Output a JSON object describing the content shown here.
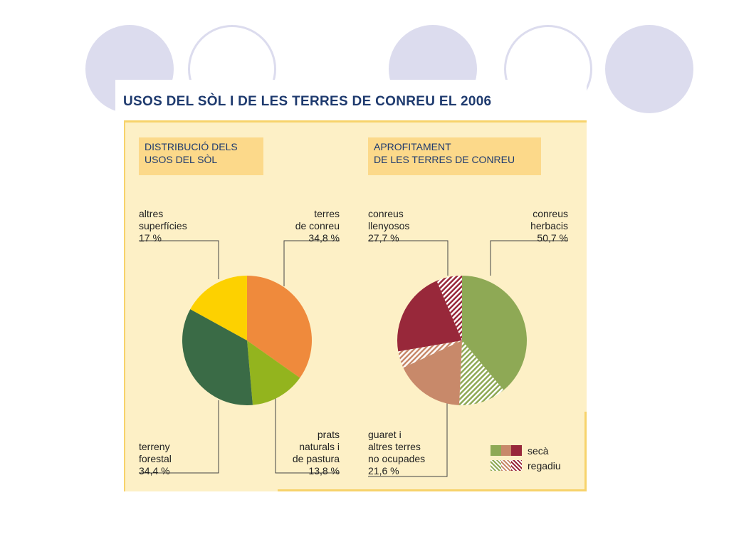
{
  "title": "USOS DEL SÒL I DE LES TERRES DE CONREU EL 2006",
  "left_heading": [
    "DISTRIBUCIÓ DELS",
    "USOS DEL SÒL"
  ],
  "right_heading": [
    "APROFITAMENT",
    "DE LES TERRES DE CONREU"
  ],
  "colors": {
    "title": "#1e3a6e",
    "background_panel": "#fdf0c6",
    "heading_box": "#fcd98a",
    "decor_circles": "#dcdcee",
    "terres_de_conreu": "#ef8a3c",
    "prats": "#93b41e",
    "terreny_forestal": "#3a6b46",
    "altres_superficies": "#fdd100",
    "herbacis": "#8ea955",
    "guaret": "#c8896a",
    "llenyosos": "#98283a",
    "regadiu_hatch": "#c6283b"
  },
  "left_labels": {
    "altres": {
      "text": "altres\nsuperfícies",
      "value": "17 %"
    },
    "terres": {
      "text": "terres\nde conreu",
      "value": "34,8 %"
    },
    "forestal": {
      "text": "terreny\nforestal",
      "value": "34,4 %"
    },
    "prats": {
      "text": "prats\nnaturals i\nde pastura",
      "value": "13,8 %"
    }
  },
  "right_labels": {
    "llenyosos": {
      "text": "conreus\nllenyosos",
      "value": "27,7 %"
    },
    "herbacis": {
      "text": "conreus\nherbacis",
      "value": "50,7 %"
    },
    "guaret": {
      "text": "guaret i\naltres terres\nno ocupades",
      "value": "21,6 %"
    }
  },
  "legend": [
    {
      "label": "secà",
      "pattern": "solid"
    },
    {
      "label": "regadiu",
      "pattern": "hatched"
    }
  ],
  "chart_data": [
    {
      "type": "pie",
      "title": "DISTRIBUCIÓ DELS USOS DEL SÒL",
      "categories": [
        "terres de conreu",
        "prats naturals i de pastura",
        "terreny forestal",
        "altres superfícies"
      ],
      "values": [
        34.8,
        13.8,
        34.4,
        17
      ],
      "colors": [
        "#ef8a3c",
        "#93b41e",
        "#3a6b46",
        "#fdd100"
      ]
    },
    {
      "type": "pie",
      "title": "APROFITAMENT DE LES TERRES DE CONREU",
      "categories": [
        "conreus herbacis",
        "guaret i altres terres no ocupades",
        "conreus llenyosos"
      ],
      "values": [
        50.7,
        21.6,
        27.7
      ],
      "series": [
        {
          "name": "secà",
          "values": [
            38.9,
            17.4,
            21.3
          ]
        },
        {
          "name": "regadiu",
          "values": [
            11.8,
            4.2,
            6.4
          ]
        }
      ],
      "colors": [
        "#8ea955",
        "#c8896a",
        "#98283a"
      ]
    }
  ]
}
